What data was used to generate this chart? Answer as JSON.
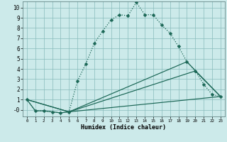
{
  "xlabel": "Humidex (Indice chaleur)",
  "bg_color": "#cceaea",
  "grid_color": "#88bbbb",
  "line_color": "#1a6655",
  "xlim": [
    -0.5,
    23.5
  ],
  "ylim": [
    -0.65,
    10.6
  ],
  "xticks": [
    0,
    1,
    2,
    3,
    4,
    5,
    6,
    7,
    8,
    9,
    10,
    11,
    12,
    13,
    14,
    15,
    16,
    17,
    18,
    19,
    20,
    21,
    22,
    23
  ],
  "yticks": [
    0,
    1,
    2,
    3,
    4,
    5,
    6,
    7,
    8,
    9,
    10
  ],
  "ytick_labels": [
    "-0",
    "1",
    "2",
    "3",
    "4",
    "5",
    "6",
    "7",
    "8",
    "9",
    "10"
  ],
  "series": [
    {
      "x": [
        0,
        1,
        2,
        3,
        4,
        5,
        6,
        7,
        8,
        9,
        10,
        11,
        12,
        13,
        14,
        15,
        16,
        17,
        18,
        19,
        20,
        21,
        22,
        23
      ],
      "y": [
        1.0,
        -0.1,
        -0.1,
        -0.2,
        -0.3,
        -0.2,
        2.8,
        4.5,
        6.5,
        7.7,
        8.8,
        9.3,
        9.2,
        10.5,
        9.3,
        9.3,
        8.3,
        7.5,
        6.2,
        4.7,
        3.8,
        2.5,
        1.5,
        1.3
      ],
      "linestyle": "dotted",
      "marker": "D",
      "markersize": 2.5
    },
    {
      "x": [
        0,
        1,
        2,
        3,
        4,
        5,
        23
      ],
      "y": [
        1.0,
        -0.1,
        -0.1,
        -0.2,
        -0.3,
        -0.2,
        1.3
      ],
      "linestyle": "solid",
      "marker": null,
      "markersize": 0
    },
    {
      "x": [
        0,
        5,
        19,
        23
      ],
      "y": [
        1.0,
        -0.2,
        4.7,
        1.3
      ],
      "linestyle": "solid",
      "marker": null,
      "markersize": 0
    },
    {
      "x": [
        0,
        5,
        20,
        23
      ],
      "y": [
        1.0,
        -0.2,
        3.8,
        1.3
      ],
      "linestyle": "solid",
      "marker": null,
      "markersize": 0
    }
  ]
}
